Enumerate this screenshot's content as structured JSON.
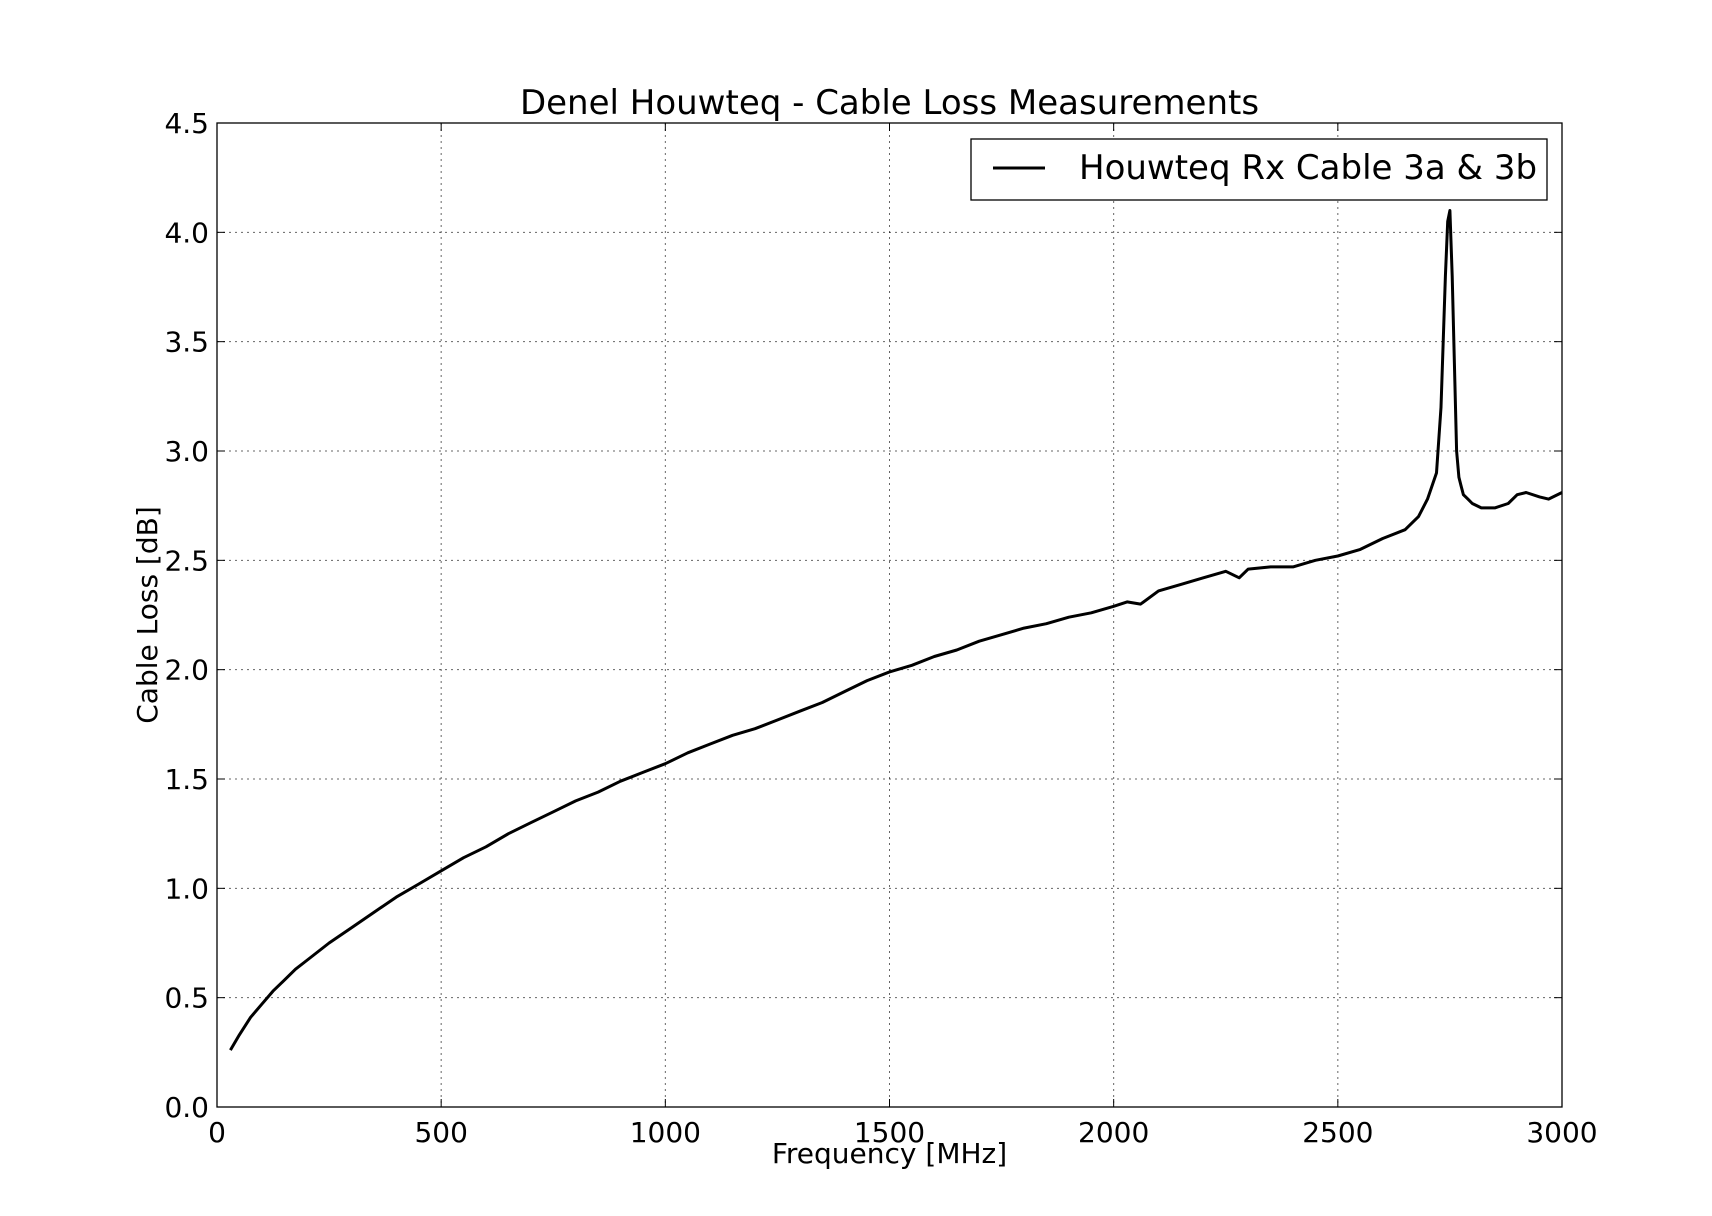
{
  "chart_data": {
    "type": "line",
    "title": "Denel Houwteq - Cable Loss Measurements",
    "xlabel": "Frequency [MHz]",
    "ylabel": "Cable Loss [dB]",
    "xlim": [
      0,
      3000
    ],
    "ylim": [
      0,
      4.5
    ],
    "xticks": [
      0,
      500,
      1000,
      1500,
      2000,
      2500,
      3000
    ],
    "xtick_labels": [
      "0",
      "500",
      "1000",
      "1500",
      "2000",
      "2500",
      "3000"
    ],
    "yticks": [
      0,
      0.5,
      1.0,
      1.5,
      2.0,
      2.5,
      3.0,
      3.5,
      4.0,
      4.5
    ],
    "ytick_labels": [
      "0.0",
      "0.5",
      "1.0",
      "1.5",
      "2.0",
      "2.5",
      "3.0",
      "3.5",
      "4.0",
      "4.5"
    ],
    "grid": true,
    "legend_position": "top-right",
    "series": [
      {
        "name": "Houwteq Rx Cable 3a & 3b",
        "color": "#000000",
        "x": [
          30,
          50,
          75,
          100,
          125,
          150,
          175,
          200,
          250,
          300,
          350,
          400,
          450,
          500,
          550,
          600,
          650,
          700,
          750,
          800,
          850,
          900,
          950,
          1000,
          1050,
          1100,
          1150,
          1200,
          1250,
          1300,
          1350,
          1400,
          1450,
          1500,
          1550,
          1600,
          1650,
          1700,
          1750,
          1800,
          1850,
          1900,
          1950,
          2000,
          2030,
          2060,
          2100,
          2150,
          2200,
          2250,
          2280,
          2300,
          2350,
          2400,
          2450,
          2500,
          2550,
          2600,
          2650,
          2680,
          2700,
          2720,
          2730,
          2740,
          2745,
          2750,
          2755,
          2760,
          2765,
          2770,
          2775,
          2780,
          2790,
          2800,
          2820,
          2850,
          2880,
          2900,
          2920,
          2950,
          2970,
          3000
        ],
        "y": [
          0.26,
          0.33,
          0.41,
          0.47,
          0.53,
          0.58,
          0.63,
          0.67,
          0.75,
          0.82,
          0.89,
          0.96,
          1.02,
          1.08,
          1.14,
          1.19,
          1.25,
          1.3,
          1.35,
          1.4,
          1.44,
          1.49,
          1.53,
          1.57,
          1.62,
          1.66,
          1.7,
          1.73,
          1.77,
          1.81,
          1.85,
          1.9,
          1.95,
          1.99,
          2.02,
          2.06,
          2.09,
          2.13,
          2.16,
          2.19,
          2.21,
          2.24,
          2.26,
          2.29,
          2.31,
          2.3,
          2.36,
          2.39,
          2.42,
          2.45,
          2.42,
          2.46,
          2.47,
          2.47,
          2.5,
          2.52,
          2.55,
          2.6,
          2.64,
          2.7,
          2.78,
          2.9,
          3.2,
          3.8,
          4.05,
          4.1,
          3.8,
          3.4,
          3.0,
          2.88,
          2.84,
          2.8,
          2.78,
          2.76,
          2.74,
          2.74,
          2.76,
          2.8,
          2.81,
          2.79,
          2.78,
          2.81
        ]
      }
    ]
  }
}
